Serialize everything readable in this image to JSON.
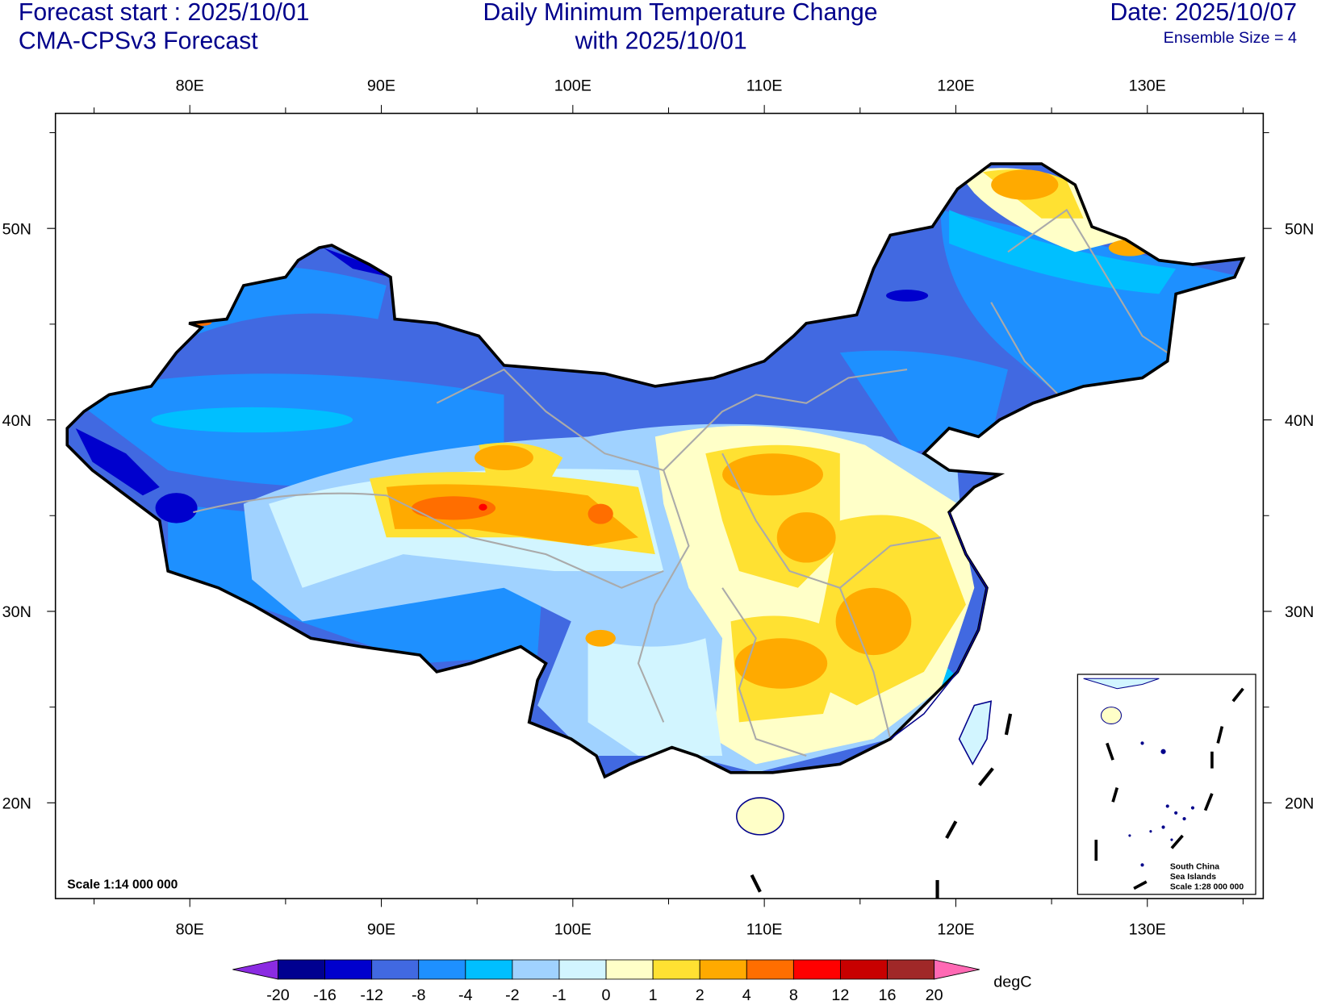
{
  "header": {
    "left_line1": "Forecast start : 2025/10/01",
    "left_line2": "CMA-CPSv3 Forecast",
    "title_line1": "Daily Minimum Temperature Change",
    "title_line2": "with 2025/10/01",
    "right_line1": "Date: 2025/10/07",
    "right_line2": "Ensemble Size = 4"
  },
  "axes": {
    "lon_labels": [
      "80E",
      "90E",
      "100E",
      "110E",
      "120E",
      "130E"
    ],
    "lat_labels": [
      "50N",
      "40N",
      "30N",
      "20N"
    ]
  },
  "map": {
    "scale_text": "Scale 1:14 000 000",
    "inset": {
      "line1": "South China",
      "line2": "Sea Islands",
      "line3": "Scale 1:28 000 000"
    }
  },
  "colorbar": {
    "unit": "degC",
    "labels": [
      "-20",
      "-16",
      "-12",
      "-8",
      "-4",
      "-2",
      "-1",
      "0",
      "1",
      "2",
      "4",
      "8",
      "12",
      "16",
      "20"
    ],
    "colors": [
      "#000090",
      "#0000CD",
      "#4169E1",
      "#1E90FF",
      "#00BFFF",
      "#A0D2FF",
      "#D2F5FF",
      "#FFFFC8",
      "#FFE132",
      "#FFAA00",
      "#FF6E00",
      "#FF0000",
      "#C80000",
      "#A02828"
    ],
    "low_extend_color": "#8B2BE2",
    "high_extend_color": "#FF69B4"
  }
}
